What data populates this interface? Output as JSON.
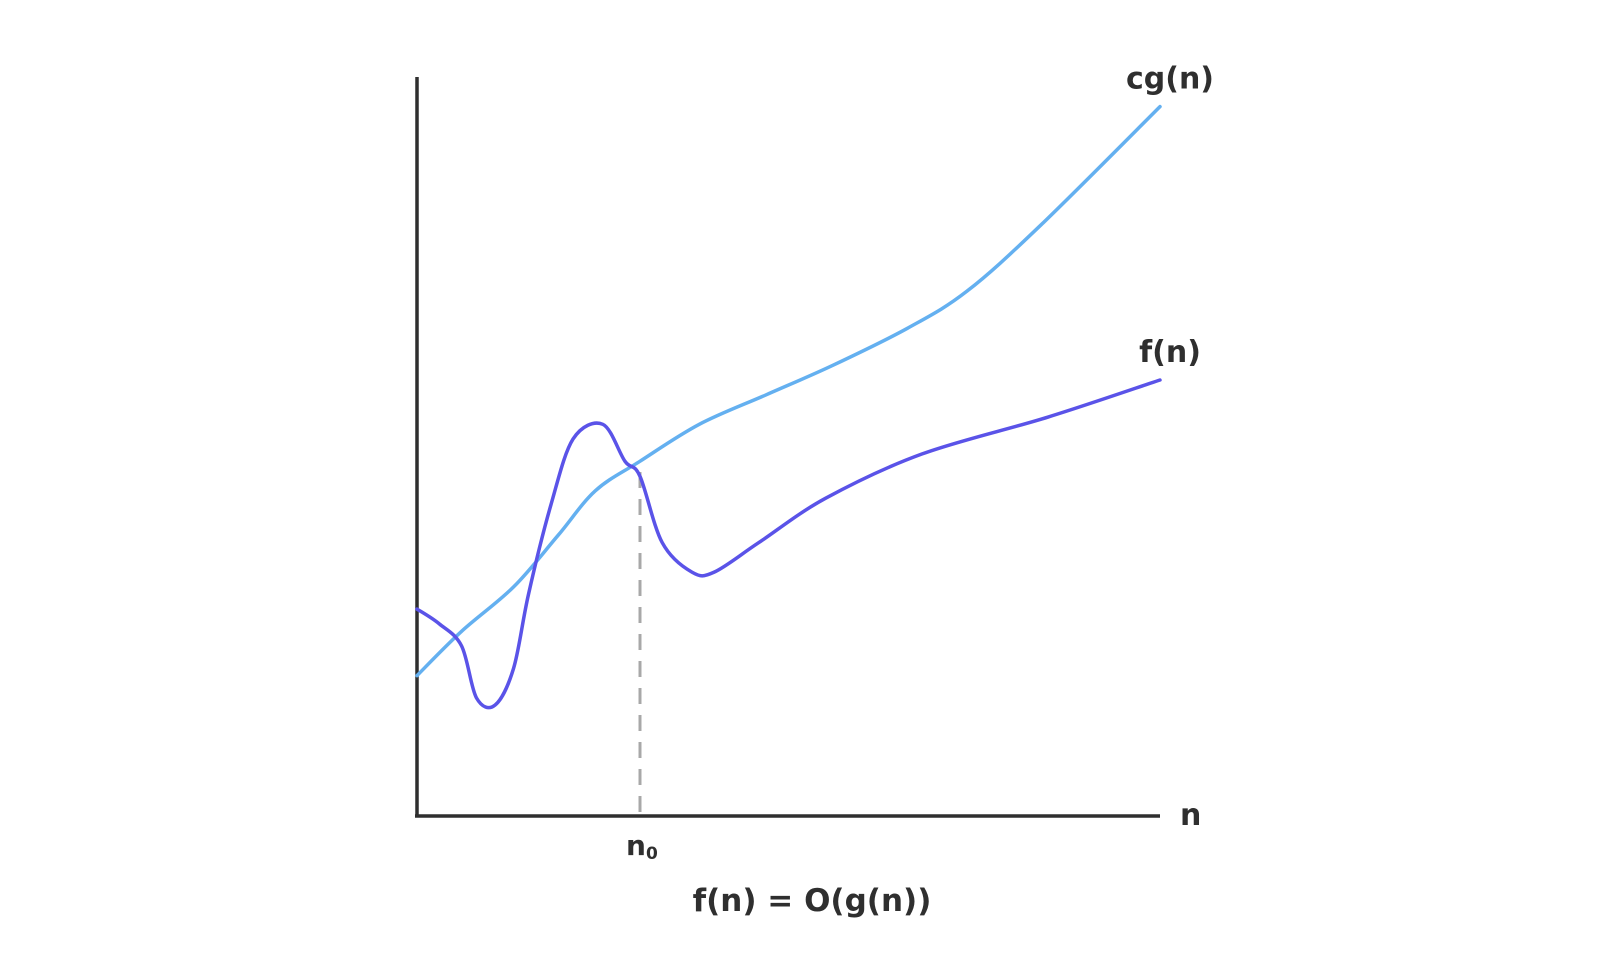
{
  "chart_data": {
    "type": "line",
    "title": "",
    "caption": "f(n) = O(g(n))",
    "xlabel": "n",
    "ylabel": "",
    "x_marker": {
      "label_base": "n",
      "label_subscript": "0",
      "position_fraction": 0.3,
      "style": "dashed"
    },
    "axes_visible_ticks": false,
    "grid": false,
    "series": [
      {
        "name": "cg(n)",
        "color": "#64b0f0",
        "points": [
          [
            0.0,
            0.19
          ],
          [
            0.06,
            0.25
          ],
          [
            0.13,
            0.31
          ],
          [
            0.19,
            0.38
          ],
          [
            0.24,
            0.44
          ],
          [
            0.3,
            0.48
          ],
          [
            0.38,
            0.53
          ],
          [
            0.47,
            0.57
          ],
          [
            0.56,
            0.61
          ],
          [
            0.66,
            0.66
          ],
          [
            0.74,
            0.71
          ],
          [
            0.84,
            0.8
          ],
          [
            1.0,
            0.96
          ]
        ]
      },
      {
        "name": "f(n)",
        "color": "#5a53e8",
        "points": [
          [
            0.0,
            0.28
          ],
          [
            0.03,
            0.26
          ],
          [
            0.06,
            0.23
          ],
          [
            0.08,
            0.16
          ],
          [
            0.105,
            0.15
          ],
          [
            0.13,
            0.2
          ],
          [
            0.15,
            0.3
          ],
          [
            0.18,
            0.42
          ],
          [
            0.21,
            0.51
          ],
          [
            0.25,
            0.53
          ],
          [
            0.28,
            0.48
          ],
          [
            0.3,
            0.46
          ],
          [
            0.33,
            0.37
          ],
          [
            0.37,
            0.33
          ],
          [
            0.4,
            0.33
          ],
          [
            0.46,
            0.37
          ],
          [
            0.55,
            0.43
          ],
          [
            0.68,
            0.49
          ],
          [
            0.85,
            0.54
          ],
          [
            1.0,
            0.59
          ]
        ]
      }
    ]
  }
}
